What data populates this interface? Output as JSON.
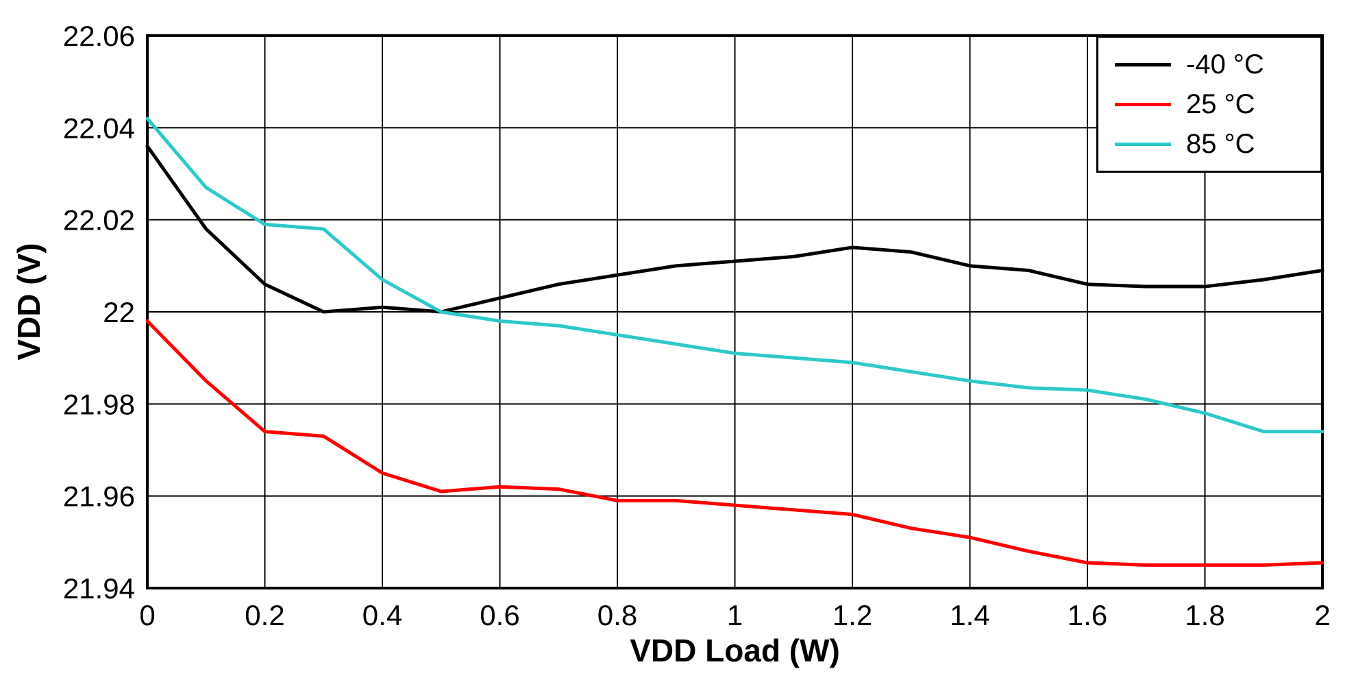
{
  "chart_data": {
    "type": "line",
    "title": "",
    "xlabel": "VDD Load (W)",
    "ylabel": "VDD (V)",
    "xlim": [
      0,
      2
    ],
    "ylim": [
      21.94,
      22.06
    ],
    "grid": true,
    "legend_position": "top-right",
    "xticks": {
      "values": [
        0,
        0.2,
        0.4,
        0.6,
        0.8,
        1,
        1.2,
        1.4,
        1.6,
        1.8,
        2
      ],
      "labels": [
        "0",
        "0.2",
        "0.4",
        "0.6",
        "0.8",
        "1",
        "1.2",
        "1.4",
        "1.6",
        "1.8",
        "2"
      ]
    },
    "yticks": {
      "values": [
        21.94,
        21.96,
        21.98,
        22,
        22.02,
        22.04,
        22.06
      ],
      "labels": [
        "21.94",
        "21.96",
        "21.98",
        "22",
        "22.02",
        "22.04",
        "22.06"
      ]
    },
    "x": [
      0,
      0.1,
      0.2,
      0.3,
      0.4,
      0.5,
      0.6,
      0.7,
      0.8,
      0.9,
      1.0,
      1.1,
      1.2,
      1.3,
      1.4,
      1.5,
      1.6,
      1.7,
      1.8,
      1.9,
      2.0
    ],
    "series": [
      {
        "name": "-40 °C",
        "color": "#000000",
        "values": [
          22.036,
          22.018,
          22.006,
          22.0,
          22.001,
          22.0,
          22.003,
          22.006,
          22.008,
          22.01,
          22.011,
          22.012,
          22.014,
          22.013,
          22.01,
          22.009,
          22.006,
          22.0055,
          22.0055,
          22.007,
          22.009
        ]
      },
      {
        "name": "25 °C",
        "color": "#ff0000",
        "values": [
          21.998,
          21.985,
          21.974,
          21.973,
          21.965,
          21.961,
          21.962,
          21.9615,
          21.959,
          21.959,
          21.958,
          21.957,
          21.956,
          21.953,
          21.951,
          21.948,
          21.9455,
          21.945,
          21.945,
          21.945,
          21.9455
        ]
      },
      {
        "name": "85 °C",
        "color": "#2dc9c9",
        "values": [
          22.042,
          22.027,
          22.019,
          22.018,
          22.007,
          22.0,
          21.998,
          21.997,
          21.995,
          21.993,
          21.991,
          21.99,
          21.989,
          21.987,
          21.985,
          21.9835,
          21.983,
          21.981,
          21.978,
          21.974,
          21.974
        ]
      }
    ]
  },
  "colors": {
    "background": "#ffffff",
    "grid": "#000000",
    "frame": "#000000",
    "text": "#000000"
  }
}
